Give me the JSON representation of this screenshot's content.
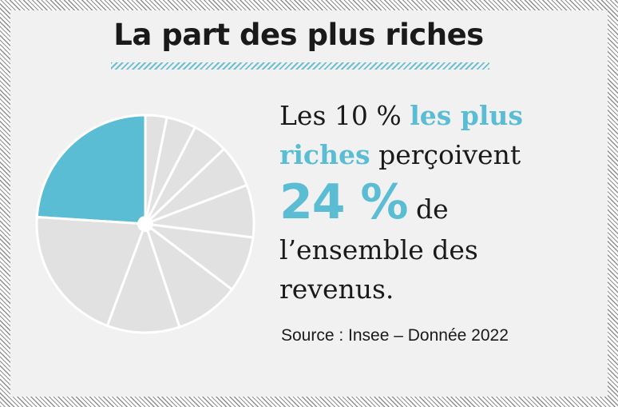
{
  "title": "La part des plus riches",
  "statement": {
    "part1": "Les 10 % ",
    "highlight": "les plus riches",
    "part2": " perçoivent ",
    "big_value": "24 %",
    "part3": " de l’ensemble des revenus."
  },
  "source": "Source : Insee – Donnée 2022",
  "colors": {
    "highlight": "#5bbdd3",
    "other": "#e1e1e1",
    "background": "#f1f1f1"
  },
  "chart_data": {
    "type": "pie",
    "slices": [
      {
        "value": 24,
        "highlight": true
      },
      {
        "value": 3.2
      },
      {
        "value": 4.4
      },
      {
        "value": 5.3
      },
      {
        "value": 6.3
      },
      {
        "value": 7.8
      },
      {
        "value": 8.3
      },
      {
        "value": 9.6
      },
      {
        "value": 10.8
      },
      {
        "value": 20.3
      }
    ]
  }
}
